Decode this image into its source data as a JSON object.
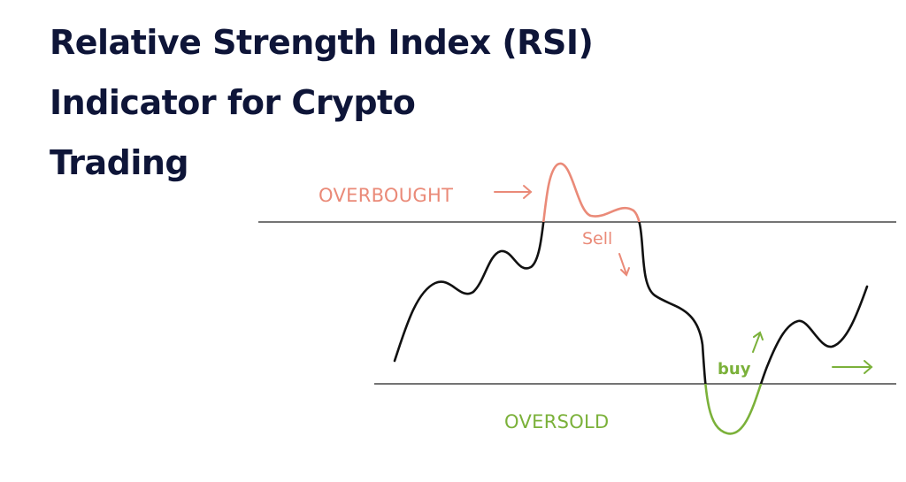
{
  "title": {
    "line1": "Relative Strength Index (RSI)",
    "line2": "Indicator for Crypto",
    "line3": "Trading"
  },
  "labels": {
    "overbought": "OVERBOUGHT",
    "oversold": "OVERSOLD",
    "sell": "Sell",
    "buy": "buy"
  },
  "colors": {
    "title": "#0e1538",
    "line": "#111111",
    "overbought": "#ea8a78",
    "oversold": "#7bb13a"
  },
  "icons": [
    "arrow-right-icon",
    "arrow-down-right-icon",
    "arrow-up-right-icon"
  ]
}
